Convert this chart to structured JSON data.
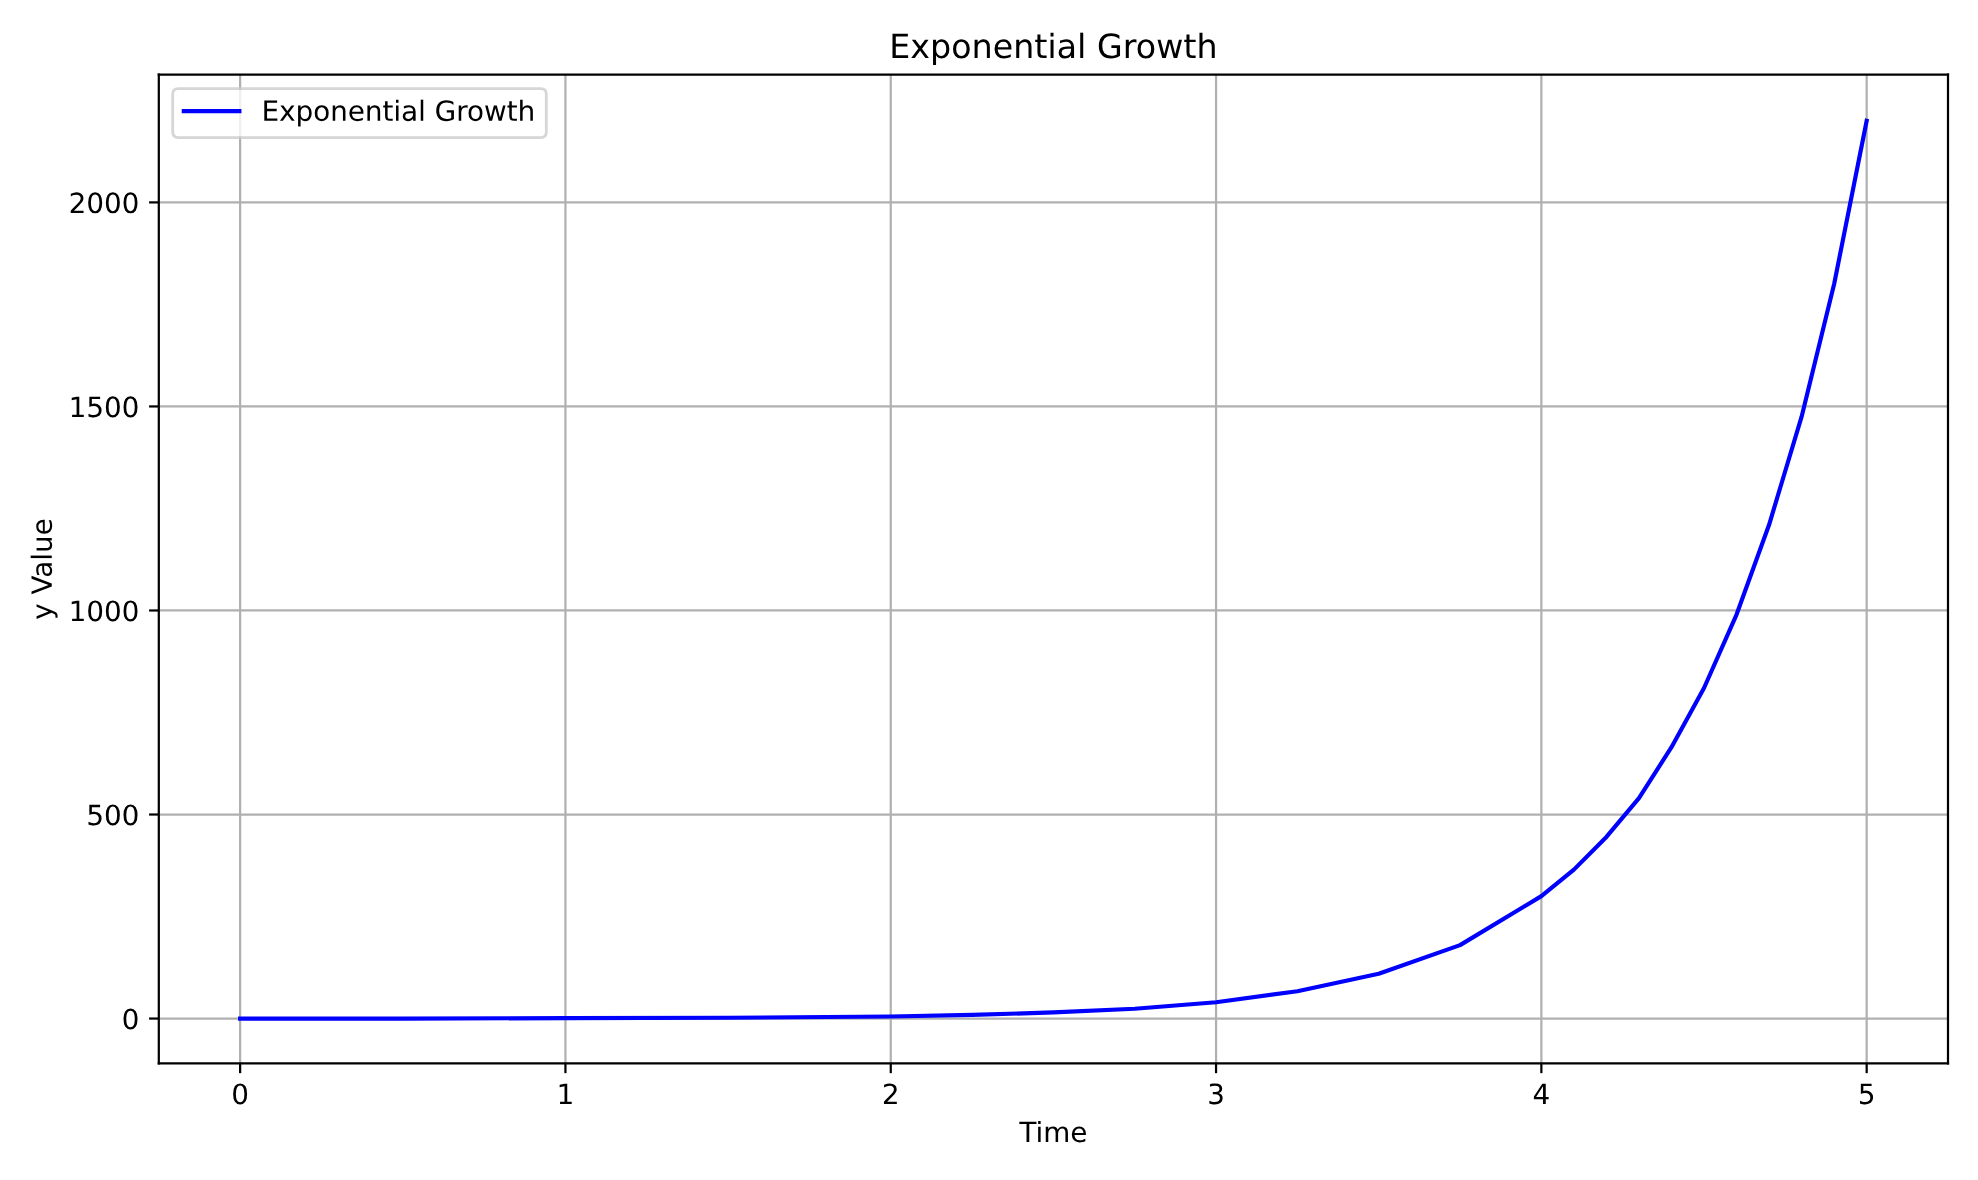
{
  "chart_data": {
    "type": "line",
    "title": "Exponential Growth",
    "xlabel": "Time",
    "ylabel": "y Value",
    "series": [
      {
        "name": "Exponential Growth",
        "color": "#0000ff",
        "x": [
          0,
          0.5,
          1,
          1.5,
          2,
          2.25,
          2.5,
          2.75,
          3,
          3.25,
          3.5,
          3.75,
          4,
          4.1,
          4.2,
          4.3,
          4.4,
          4.5,
          4.6,
          4.7,
          4.8,
          4.9,
          5
        ],
        "values": [
          0,
          0,
          1,
          2,
          5,
          9,
          15,
          24,
          40,
          67,
          110,
          180,
          300,
          365,
          445,
          540,
          665,
          810,
          990,
          1210,
          1475,
          1800,
          2200
        ]
      }
    ],
    "xlim": [
      -0.25,
      5.25
    ],
    "ylim": [
      -110,
      2313
    ],
    "xticks": [
      0,
      1,
      2,
      3,
      4,
      5
    ],
    "yticks": [
      0,
      500,
      1000,
      1500,
      2000
    ],
    "grid": true,
    "legend": "top left",
    "marker": "none",
    "line_style": "solid"
  }
}
